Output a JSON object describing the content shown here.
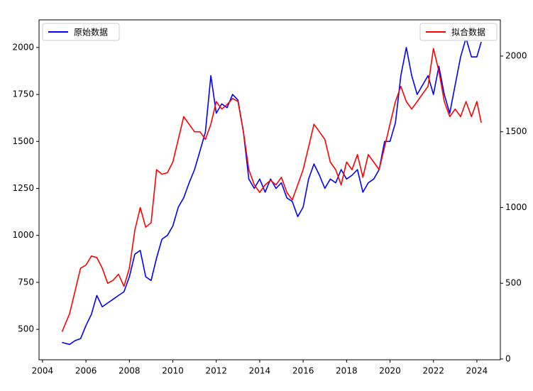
{
  "chart_data": {
    "type": "line",
    "x": [
      2004.9,
      2005.25,
      2005.5,
      2005.75,
      2006.0,
      2006.25,
      2006.5,
      2006.75,
      2007.0,
      2007.25,
      2007.5,
      2007.75,
      2008.0,
      2008.25,
      2008.5,
      2008.75,
      2009.0,
      2009.25,
      2009.5,
      2009.75,
      2010.0,
      2010.25,
      2010.5,
      2010.75,
      2011.0,
      2011.25,
      2011.5,
      2011.75,
      2012.0,
      2012.25,
      2012.5,
      2012.75,
      2013.0,
      2013.25,
      2013.5,
      2013.75,
      2014.0,
      2014.25,
      2014.5,
      2014.75,
      2015.0,
      2015.25,
      2015.5,
      2015.75,
      2016.0,
      2016.25,
      2016.5,
      2016.75,
      2017.0,
      2017.25,
      2017.5,
      2017.75,
      2018.0,
      2018.25,
      2018.5,
      2018.75,
      2019.0,
      2019.25,
      2019.5,
      2019.75,
      2020.0,
      2020.25,
      2020.5,
      2020.75,
      2021.0,
      2021.25,
      2021.5,
      2021.75,
      2022.0,
      2022.25,
      2022.5,
      2022.75,
      2023.0,
      2023.25,
      2023.5,
      2023.75,
      2024.0,
      2024.2
    ],
    "series": [
      {
        "name": "原始数据",
        "color": "#0000ff",
        "legend": "upper left",
        "values": [
          430,
          420,
          440,
          450,
          520,
          580,
          680,
          620,
          640,
          660,
          680,
          700,
          780,
          900,
          920,
          780,
          760,
          880,
          980,
          1000,
          1050,
          1150,
          1200,
          1280,
          1350,
          1450,
          1550,
          1850,
          1650,
          1700,
          1680,
          1750,
          1720,
          1550,
          1300,
          1250,
          1300,
          1230,
          1300,
          1250,
          1280,
          1200,
          1180,
          1100,
          1150,
          1300,
          1380,
          1320,
          1250,
          1300,
          1280,
          1350,
          1300,
          1320,
          1350,
          1230,
          1280,
          1300,
          1350,
          1500,
          1500,
          1600,
          1850,
          2000,
          1850,
          1750,
          1800,
          1850,
          1750,
          1900,
          1750,
          1650,
          1800,
          1950,
          2050,
          1950,
          1950,
          2030
        ]
      },
      {
        "name": "拟合数据",
        "color": "#ff0000",
        "axis": "y2",
        "legend": "upper right",
        "values": [
          180,
          300,
          450,
          600,
          620,
          680,
          670,
          600,
          500,
          520,
          560,
          480,
          600,
          850,
          1000,
          870,
          900,
          1250,
          1220,
          1230,
          1300,
          1450,
          1600,
          1550,
          1500,
          1500,
          1450,
          1550,
          1700,
          1650,
          1680,
          1720,
          1700,
          1500,
          1250,
          1150,
          1100,
          1150,
          1180,
          1150,
          1200,
          1100,
          1050,
          1150,
          1250,
          1400,
          1550,
          1500,
          1450,
          1300,
          1250,
          1150,
          1300,
          1250,
          1350,
          1200,
          1350,
          1300,
          1250,
          1400,
          1550,
          1700,
          1800,
          1700,
          1650,
          1700,
          1750,
          1800,
          2050,
          1900,
          1700,
          1600,
          1650,
          1600,
          1700,
          1600,
          1700,
          1560
        ]
      }
    ],
    "xlim": [
      2003.84,
      2025.08
    ],
    "xticks": [
      2004,
      2006,
      2008,
      2010,
      2012,
      2014,
      2016,
      2018,
      2020,
      2022,
      2024
    ],
    "ylim": [
      338,
      2147
    ],
    "yticks": [
      500,
      750,
      1000,
      1250,
      1500,
      1750,
      2000
    ],
    "y2lim": [
      -5,
      2239
    ],
    "y2ticks": [
      0,
      500,
      1000,
      1500,
      2000
    ]
  }
}
